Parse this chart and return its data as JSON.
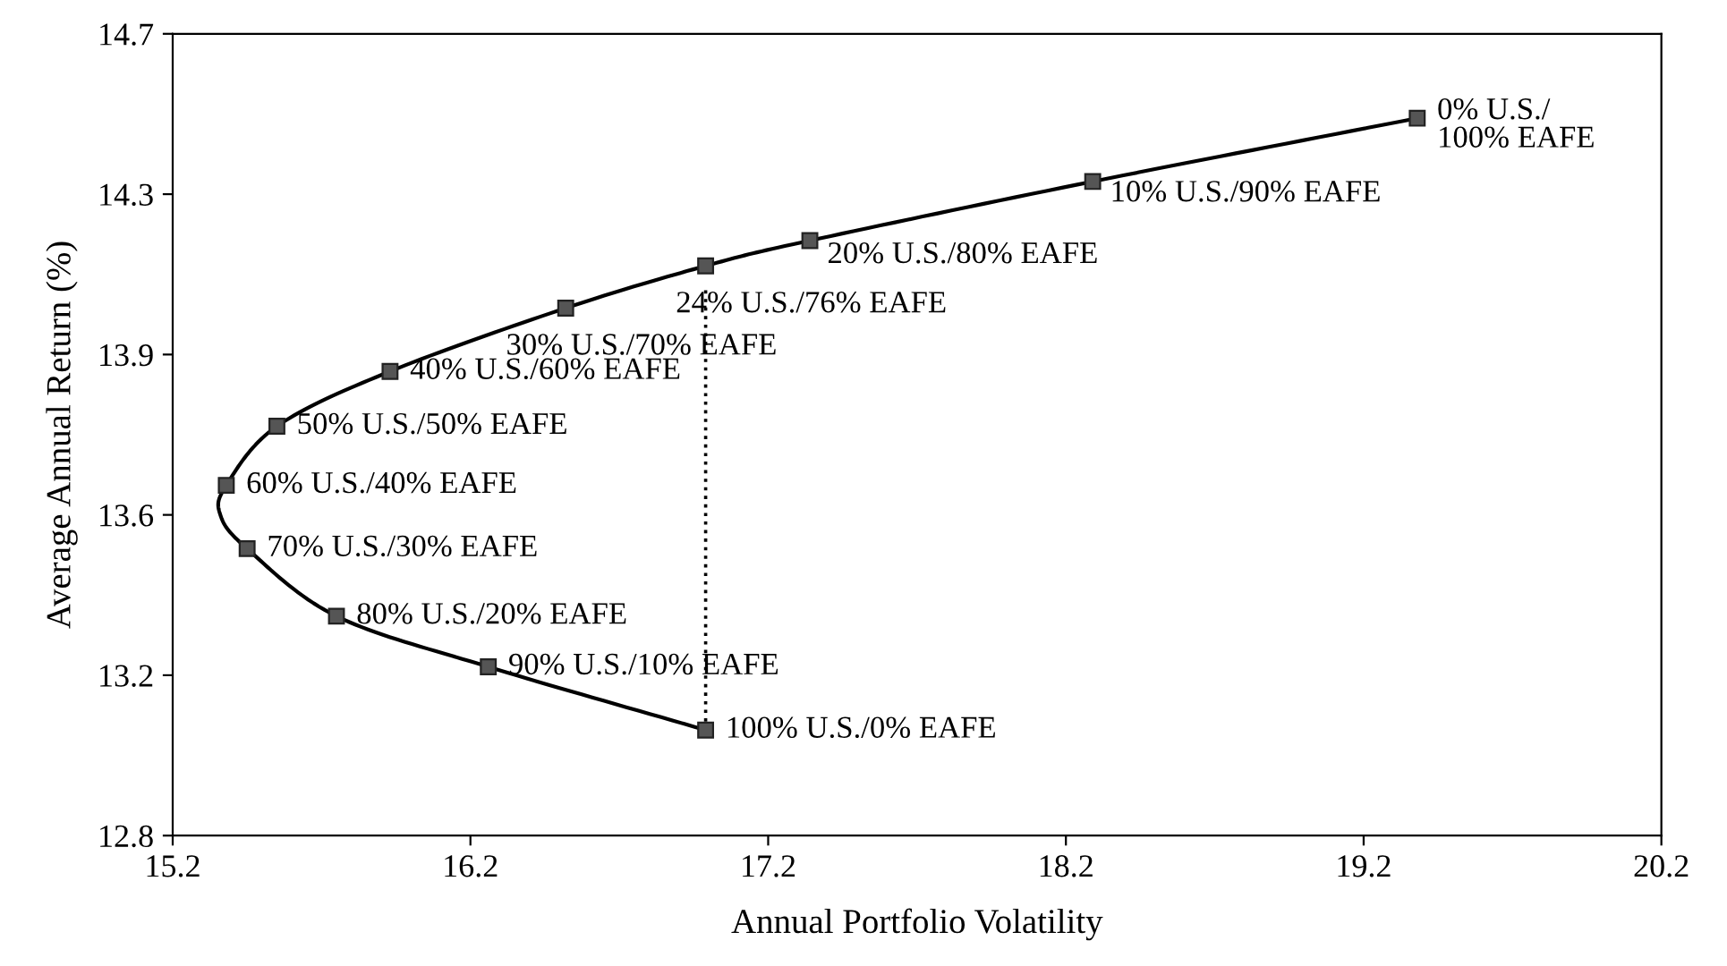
{
  "chart_data": {
    "type": "line",
    "xlabel": "Annual Portfolio Volatility",
    "ylabel": "Average Annual Return (%)",
    "xlim": [
      15.2,
      20.2
    ],
    "xticks": [
      15.2,
      16.2,
      17.2,
      18.2,
      19.2,
      20.2
    ],
    "ylim": [
      12.8,
      14.7
    ],
    "yticks": [
      12.8,
      {
        "value": 13.18,
        "label": "13.2"
      },
      {
        "value": 13.56,
        "label": "13.6"
      },
      {
        "value": 13.94,
        "label": "13.9"
      },
      {
        "value": 14.32,
        "label": "14.3"
      },
      14.7
    ],
    "grid": false,
    "legend": false,
    "series": [
      {
        "color": "#000000",
        "marker": "none",
        "line_style": "solid",
        "x": [
          19.38,
          18.29,
          17.34,
          16.99,
          16.52,
          15.93,
          15.55,
          15.38,
          15.36,
          15.45,
          15.75,
          16.26,
          16.99
        ],
        "values": [
          14.5,
          14.35,
          14.21,
          14.15,
          14.05,
          13.9,
          13.77,
          13.63,
          13.56,
          13.48,
          13.32,
          13.2,
          13.05
        ]
      },
      {
        "type": "scatter",
        "color": "#555555",
        "marker": "square",
        "x": [
          19.38,
          18.29,
          17.34,
          16.99,
          16.52,
          15.93,
          15.55,
          15.38,
          15.45,
          15.75,
          16.26,
          16.99
        ],
        "values": [
          14.5,
          14.35,
          14.21,
          14.15,
          14.05,
          13.9,
          13.77,
          13.63,
          13.48,
          13.32,
          13.2,
          13.05
        ]
      },
      {
        "type": "line",
        "color": "#000000",
        "marker": "none",
        "line_style": "dotted",
        "x": [
          16.99,
          16.99
        ],
        "values": [
          13.05,
          14.1
        ]
      }
    ],
    "annotations": [
      {
        "text": "0% U.S./\n100% EAFE",
        "x": 19.38,
        "y": 14.5
      },
      {
        "text": "10% U.S./90% EAFE",
        "x": 18.29,
        "y": 14.35
      },
      {
        "text": "20% U.S./80% EAFE",
        "x": 17.34,
        "y": 14.21
      },
      {
        "text": "24% U.S./76% EAFE",
        "x": 16.99,
        "y": 14.15
      },
      {
        "text": "30% U.S./70% EAFE",
        "x": 16.52,
        "y": 14.05
      },
      {
        "text": "40% U.S./60% EAFE",
        "x": 15.93,
        "y": 13.9
      },
      {
        "text": "50% U.S./50% EAFE",
        "x": 15.55,
        "y": 13.77
      },
      {
        "text": "60% U.S./40% EAFE",
        "x": 15.38,
        "y": 13.63
      },
      {
        "text": "70% U.S./30% EAFE",
        "x": 15.45,
        "y": 13.48
      },
      {
        "text": "80% U.S./20% EAFE",
        "x": 15.75,
        "y": 13.32
      },
      {
        "text": "90% U.S./10% EAFE",
        "x": 16.26,
        "y": 13.2
      },
      {
        "text": "100% U.S./0% EAFE",
        "x": 16.99,
        "y": 13.05
      }
    ]
  }
}
